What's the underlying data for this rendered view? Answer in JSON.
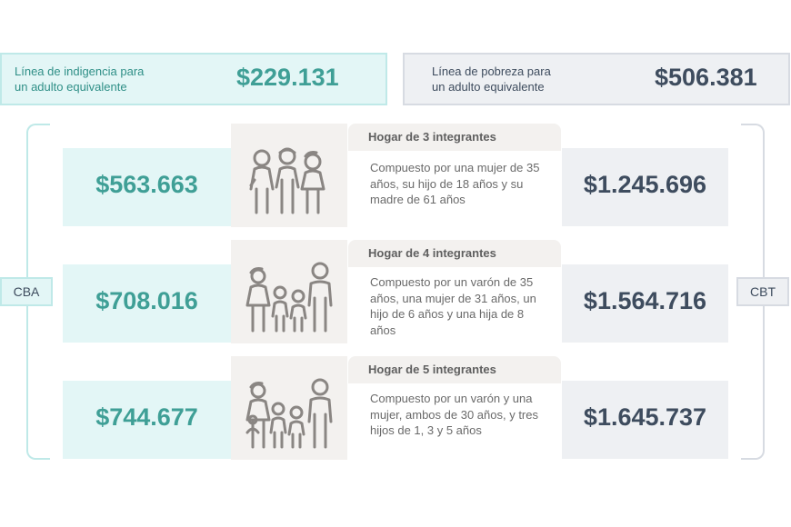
{
  "header": {
    "indigencia": {
      "label_line1": "Línea de indigencia para",
      "label_line2": "un adulto equivalente",
      "value": "$229.131"
    },
    "pobreza": {
      "label_line1": "Línea de pobreza para",
      "label_line2": "un adulto equivalente",
      "value": "$506.381"
    }
  },
  "side_labels": {
    "left": "CBA",
    "right": "CBT"
  },
  "households": [
    {
      "title": "Hogar de 3 integrantes",
      "description": "Compuesto por una mujer de 35 años, su hijo de 18 años y su madre de 61 años",
      "cba": "$563.663",
      "cbt": "$1.245.696",
      "icon": "family-3-icon"
    },
    {
      "title": "Hogar de 4 integrantes",
      "description": "Compuesto por un varón de 35 años, una mujer de 31 años, un hijo de 6 años y una hija de 8 años",
      "cba": "$708.016",
      "cbt": "$1.564.716",
      "icon": "family-4-icon"
    },
    {
      "title": "Hogar de 5 integrantes",
      "description": "Compuesto por un varón y una mujer, ambos de 30 años, y tres hijos de 1, 3 y 5 años",
      "cba": "$744.677",
      "cbt": "$1.645.737",
      "icon": "family-5-icon"
    }
  ],
  "colors": {
    "teal": "#3f9f96",
    "teal_bg": "#e3f6f6",
    "slate": "#3e4c5e",
    "slate_bg": "#eef0f3",
    "icon_gray": "#8a8683"
  }
}
